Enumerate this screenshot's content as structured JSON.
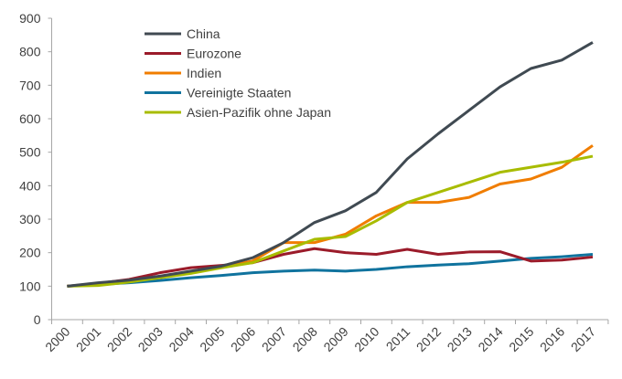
{
  "chart_data": {
    "type": "line",
    "title": "",
    "xlabel": "",
    "ylabel": "",
    "ylim": [
      0,
      900
    ],
    "yticks": [
      0,
      100,
      200,
      300,
      400,
      500,
      600,
      700,
      800,
      900
    ],
    "grid": false,
    "legend_position": "top-left",
    "categories": [
      "2000",
      "2001",
      "2002",
      "2003",
      "2004",
      "2005",
      "2006",
      "2007",
      "2008",
      "2009",
      "2010",
      "2011",
      "2012",
      "2013",
      "2014",
      "2015",
      "2016",
      "2017"
    ],
    "series": [
      {
        "name": "China",
        "color": "#404a52",
        "values": [
          100,
          110,
          118,
          130,
          145,
          160,
          185,
          230,
          290,
          325,
          380,
          480,
          555,
          625,
          695,
          750,
          775,
          828
        ]
      },
      {
        "name": "Eurozone",
        "color": "#9b1b2a",
        "values": [
          100,
          108,
          120,
          140,
          155,
          162,
          170,
          195,
          212,
          200,
          195,
          210,
          195,
          202,
          203,
          175,
          178,
          187
        ]
      },
      {
        "name": "Indien",
        "color": "#f07d00",
        "values": [
          100,
          105,
          115,
          125,
          140,
          158,
          175,
          230,
          230,
          255,
          310,
          350,
          350,
          365,
          405,
          420,
          455,
          520
        ]
      },
      {
        "name": "Vereinigte Staaten",
        "color": "#10739e",
        "values": [
          100,
          105,
          110,
          117,
          125,
          132,
          140,
          145,
          148,
          145,
          150,
          158,
          163,
          167,
          175,
          183,
          188,
          195
        ]
      },
      {
        "name": "Asien-Pazifik ohne Japan",
        "color": "#a8bc00",
        "values": [
          100,
          102,
          112,
          125,
          138,
          155,
          170,
          205,
          240,
          248,
          295,
          350,
          380,
          410,
          440,
          455,
          470,
          488
        ]
      }
    ]
  }
}
